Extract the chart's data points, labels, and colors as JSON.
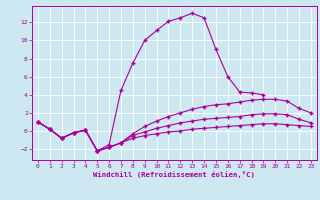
{
  "xlabel": "Windchill (Refroidissement éolien,°C)",
  "background_color": "#cde8f0",
  "line_color": "#aa0099",
  "xlim": [
    -0.5,
    23.5
  ],
  "ylim": [
    -3.2,
    13.8
  ],
  "xticks": [
    0,
    1,
    2,
    3,
    4,
    5,
    6,
    7,
    8,
    9,
    10,
    11,
    12,
    13,
    14,
    15,
    16,
    17,
    18,
    19,
    20,
    21,
    22,
    23
  ],
  "yticks": [
    -2,
    0,
    2,
    4,
    6,
    8,
    10,
    12
  ],
  "line1_x": [
    0,
    1,
    2,
    3,
    4,
    5,
    6,
    7,
    8,
    9,
    10,
    11,
    12,
    13,
    14,
    15,
    16,
    17,
    18,
    19
  ],
  "line1_y": [
    1.0,
    0.2,
    -0.8,
    -0.2,
    0.1,
    -2.2,
    -1.5,
    4.5,
    7.5,
    10.0,
    11.1,
    12.1,
    12.5,
    13.0,
    12.5,
    9.0,
    6.0,
    4.3,
    4.2,
    4.0
  ],
  "line2_x": [
    0,
    1,
    2,
    3,
    4,
    5,
    6,
    7,
    8,
    9,
    10,
    11,
    12,
    13,
    14,
    15,
    16,
    17,
    18,
    19,
    20,
    21,
    22,
    23
  ],
  "line2_y": [
    1.0,
    0.2,
    -0.8,
    -0.2,
    0.1,
    -2.2,
    -1.8,
    -1.3,
    -0.3,
    0.5,
    1.1,
    1.6,
    2.0,
    2.4,
    2.7,
    2.9,
    3.0,
    3.2,
    3.4,
    3.5,
    3.5,
    3.3,
    2.5,
    2.0
  ],
  "line3_x": [
    0,
    1,
    2,
    3,
    4,
    5,
    6,
    7,
    8,
    9,
    10,
    11,
    12,
    13,
    14,
    15,
    16,
    17,
    18,
    19,
    20,
    21,
    22,
    23
  ],
  "line3_y": [
    1.0,
    0.2,
    -0.8,
    -0.2,
    0.1,
    -2.2,
    -1.8,
    -1.3,
    -0.5,
    -0.1,
    0.3,
    0.6,
    0.9,
    1.1,
    1.3,
    1.4,
    1.5,
    1.6,
    1.8,
    1.9,
    1.9,
    1.8,
    1.3,
    0.9
  ],
  "line4_x": [
    0,
    1,
    2,
    3,
    4,
    5,
    6,
    7,
    8,
    9,
    10,
    11,
    12,
    13,
    14,
    15,
    16,
    17,
    18,
    19,
    20,
    21,
    22,
    23
  ],
  "line4_y": [
    1.0,
    0.2,
    -0.8,
    -0.2,
    0.1,
    -2.2,
    -1.8,
    -1.3,
    -0.8,
    -0.5,
    -0.3,
    -0.1,
    0.0,
    0.2,
    0.3,
    0.4,
    0.5,
    0.6,
    0.7,
    0.8,
    0.8,
    0.7,
    0.6,
    0.5
  ]
}
